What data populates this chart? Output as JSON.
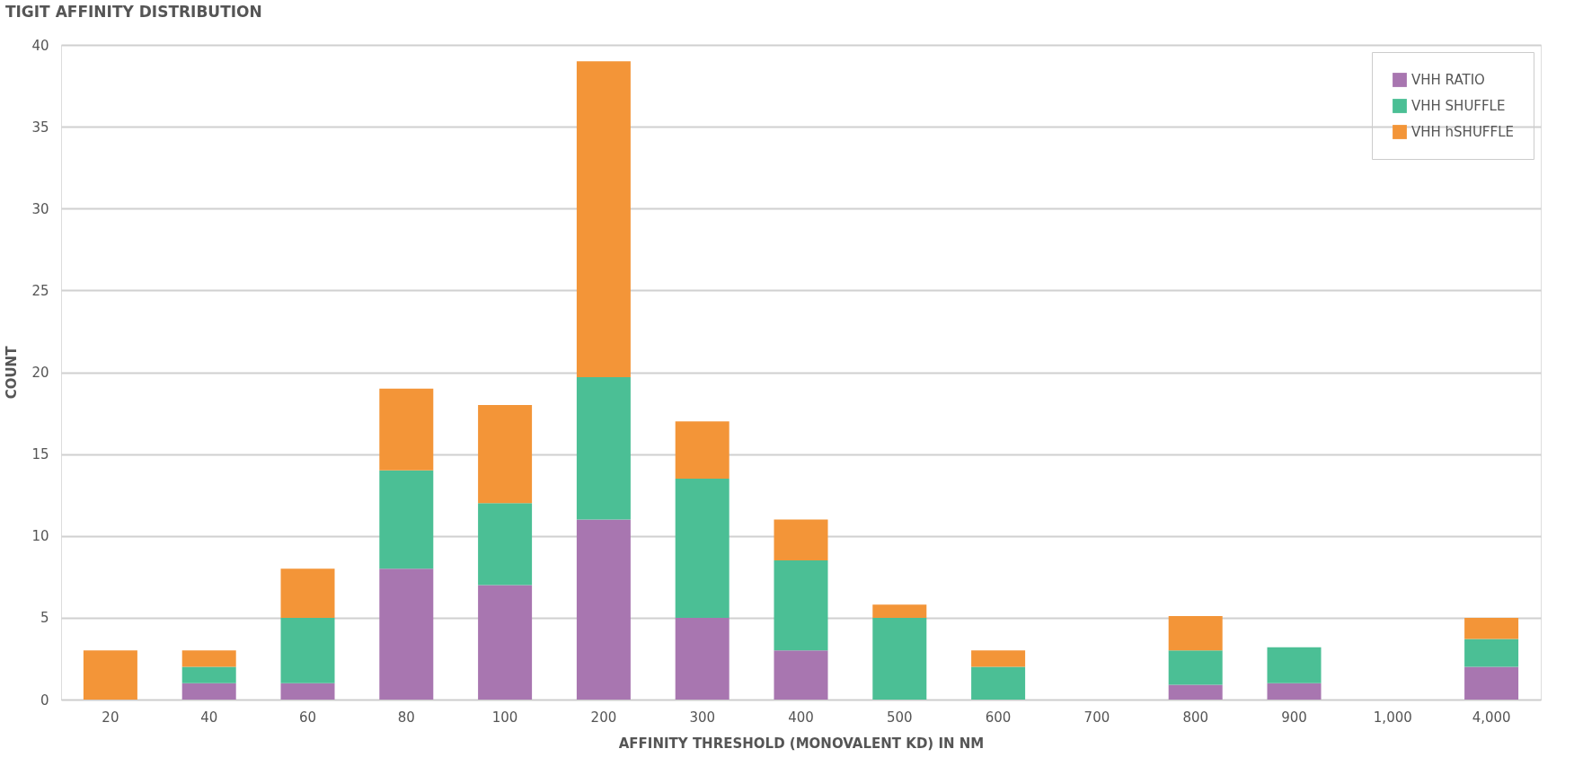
{
  "chart_data": {
    "type": "bar",
    "title": "TIGIT AFFINITY DISTRIBUTION",
    "xlabel": "AFFINITY THRESHOLD (MONOVALENT KD) IN NM",
    "ylabel": "COUNT",
    "categories": [
      "20",
      "40",
      "60",
      "80",
      "100",
      "200",
      "300",
      "400",
      "500",
      "600",
      "700",
      "800",
      "900",
      "1,000",
      "4,000"
    ],
    "stacked": true,
    "series": [
      {
        "name": "VHH RATIO",
        "color": "#a876b0",
        "values": [
          0,
          1,
          1,
          8,
          7,
          11,
          5,
          3,
          0,
          0,
          0,
          0.9,
          1,
          0,
          2
        ]
      },
      {
        "name": "VHH SHUFFLE",
        "color": "#4bbf95",
        "values": [
          0,
          1,
          4,
          6,
          5,
          8.7,
          8.5,
          5.5,
          5,
          2,
          0,
          2.1,
          2.2,
          0,
          1.7
        ]
      },
      {
        "name": "VHH hSHUFFLE",
        "color": "#f39538",
        "values": [
          3,
          1,
          3,
          5,
          6,
          19.3,
          3.5,
          2.5,
          0.8,
          1,
          0,
          2.1,
          0,
          0,
          1.3
        ]
      }
    ],
    "ylim": [
      0,
      40
    ],
    "yticks": [
      0,
      5,
      10,
      15,
      20,
      25,
      30,
      35,
      40
    ],
    "grid": "y",
    "legend": "top right"
  }
}
